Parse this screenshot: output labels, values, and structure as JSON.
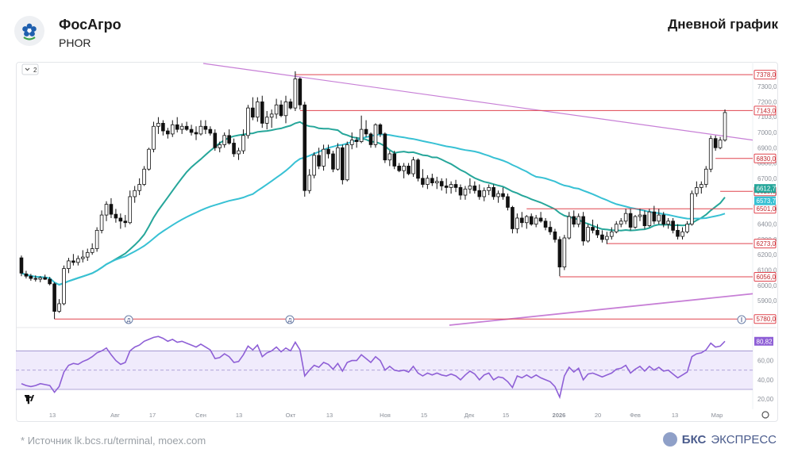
{
  "header": {
    "company": "ФосАгро",
    "ticker": "PHOR",
    "chart_title": "Дневной график",
    "logo_icon": "phosagro-flower-icon"
  },
  "footer": {
    "source": "Источник lk.bcs.ru/terminal, moex.com",
    "brand_bold": "БКС",
    "brand_rest": "ЭКСПРЕСС",
    "star": "*"
  },
  "toolbar": {
    "collapse_label": "2"
  },
  "colors": {
    "up": "#ffffff",
    "down": "#111111",
    "ma_fast": "#26a69a",
    "ma_slow": "#38c1d4",
    "trend": "#c77fd6",
    "level": "#e0454f",
    "rsi": "#8e5fd6"
  },
  "chart_data": [
    {
      "type": "candlestick",
      "y_range": [
        5750,
        7420
      ],
      "x_ticks": [
        "13",
        "Авг",
        "17",
        "Сен",
        "13",
        "Окт",
        "13",
        "Ноя",
        "15",
        "Дек",
        "15",
        "2026",
        "20",
        "Фев",
        "13",
        "Мар"
      ],
      "y_ticks": [
        "7300,0",
        "7200,0",
        "7103,0",
        "7000,0",
        "6900,0",
        "6800,0",
        "6700,0",
        "6600,0",
        "6500,0",
        "6400,0",
        "6300,0",
        "6200,0",
        "6100,0",
        "6000,0",
        "5900,0"
      ],
      "levels": [
        {
          "label": "7378,0",
          "value": 7378
        },
        {
          "label": "7143,0",
          "value": 7143
        },
        {
          "label": "6830,0",
          "value": 6830
        },
        {
          "label": "6615,0",
          "value": 6615
        },
        {
          "label": "6501,0",
          "value": 6501
        },
        {
          "label": "6273,0",
          "value": 6273
        },
        {
          "label": "6056,0",
          "value": 6056
        },
        {
          "label": "5780,0",
          "value": 5780
        }
      ],
      "ma_labels": [
        {
          "label": "6612,7",
          "value": 6612.7
        },
        {
          "label": "6573,7",
          "value": 6573.7
        }
      ],
      "events": [
        "Д",
        "Д"
      ],
      "ohlc": [
        [
          6180,
          6195,
          6060,
          6080
        ],
        [
          6075,
          6095,
          6045,
          6060
        ],
        [
          6060,
          6075,
          6030,
          6045
        ],
        [
          6045,
          6065,
          6025,
          6040
        ],
        [
          6040,
          6060,
          6020,
          6050
        ],
        [
          6050,
          6070,
          6035,
          6040
        ],
        [
          6040,
          6055,
          6000,
          6010
        ],
        [
          6010,
          6020,
          5780,
          5830
        ],
        [
          5830,
          5910,
          5820,
          5880
        ],
        [
          5880,
          6130,
          5870,
          6110
        ],
        [
          6110,
          6180,
          6080,
          6160
        ],
        [
          6160,
          6205,
          6130,
          6150
        ],
        [
          6150,
          6195,
          6130,
          6175
        ],
        [
          6175,
          6230,
          6150,
          6185
        ],
        [
          6185,
          6240,
          6160,
          6215
        ],
        [
          6215,
          6275,
          6200,
          6240
        ],
        [
          6240,
          6380,
          6220,
          6360
        ],
        [
          6360,
          6490,
          6340,
          6460
        ],
        [
          6460,
          6550,
          6420,
          6530
        ],
        [
          6530,
          6570,
          6440,
          6465
        ],
        [
          6465,
          6500,
          6410,
          6440
        ],
        [
          6440,
          6470,
          6370,
          6420
        ],
        [
          6420,
          6460,
          6380,
          6410
        ],
        [
          6410,
          6620,
          6400,
          6580
        ],
        [
          6580,
          6650,
          6540,
          6620
        ],
        [
          6620,
          6700,
          6590,
          6660
        ],
        [
          6660,
          6780,
          6650,
          6760
        ],
        [
          6760,
          6900,
          6750,
          6890
        ],
        [
          6890,
          7070,
          6870,
          7040
        ],
        [
          7040,
          7100,
          6990,
          7060
        ],
        [
          7060,
          7080,
          6980,
          7010
        ],
        [
          7010,
          7030,
          6960,
          6990
        ],
        [
          6990,
          7080,
          6970,
          7050
        ],
        [
          7050,
          7100,
          7000,
          7020
        ],
        [
          7020,
          7060,
          6990,
          7040
        ],
        [
          7040,
          7070,
          7010,
          7020
        ],
        [
          7020,
          7050,
          6980,
          7000
        ],
        [
          7000,
          7040,
          6950,
          6990
        ],
        [
          6990,
          7080,
          6980,
          7040
        ],
        [
          7040,
          7080,
          6990,
          7020
        ],
        [
          7020,
          7040,
          6980,
          6995
        ],
        [
          6995,
          7020,
          6880,
          6900
        ],
        [
          6900,
          6940,
          6870,
          6920
        ],
        [
          6920,
          7000,
          6900,
          6980
        ],
        [
          6980,
          7020,
          6920,
          6930
        ],
        [
          6930,
          6960,
          6840,
          6860
        ],
        [
          6860,
          6900,
          6820,
          6880
        ],
        [
          6880,
          7020,
          6860,
          6980
        ],
        [
          6980,
          7180,
          6960,
          7160
        ],
        [
          7160,
          7230,
          7080,
          7100
        ],
        [
          7100,
          7230,
          7070,
          7200
        ],
        [
          7200,
          7240,
          7030,
          7060
        ],
        [
          7060,
          7140,
          7020,
          7100
        ],
        [
          7100,
          7150,
          7030,
          7120
        ],
        [
          7120,
          7220,
          7090,
          7180
        ],
        [
          7180,
          7210,
          7100,
          7110
        ],
        [
          7110,
          7240,
          7060,
          7200
        ],
        [
          7200,
          7220,
          7150,
          7160
        ],
        [
          7160,
          7400,
          7140,
          7350
        ],
        [
          7350,
          7360,
          7150,
          7180
        ],
        [
          7180,
          7200,
          6580,
          6620
        ],
        [
          6620,
          6760,
          6600,
          6720
        ],
        [
          6720,
          6870,
          6700,
          6850
        ],
        [
          6850,
          6900,
          6760,
          6780
        ],
        [
          6780,
          6920,
          6750,
          6890
        ],
        [
          6890,
          6920,
          6830,
          6860
        ],
        [
          6860,
          6880,
          6740,
          6760
        ],
        [
          6760,
          6930,
          6750,
          6900
        ],
        [
          6900,
          6920,
          6660,
          6690
        ],
        [
          6690,
          6940,
          6680,
          6920
        ],
        [
          6920,
          7000,
          6890,
          6950
        ],
        [
          6950,
          6970,
          6900,
          6940
        ],
        [
          6940,
          7110,
          6930,
          7020
        ],
        [
          7020,
          7080,
          6970,
          6990
        ],
        [
          6990,
          7000,
          6900,
          6920
        ],
        [
          6920,
          7060,
          6900,
          7050
        ],
        [
          7050,
          7060,
          6970,
          6990
        ],
        [
          6990,
          7000,
          6800,
          6820
        ],
        [
          6820,
          6880,
          6780,
          6860
        ],
        [
          6860,
          6880,
          6760,
          6780
        ],
        [
          6780,
          6800,
          6740,
          6750
        ],
        [
          6750,
          6800,
          6700,
          6780
        ],
        [
          6780,
          6800,
          6720,
          6730
        ],
        [
          6730,
          6840,
          6710,
          6820
        ],
        [
          6820,
          6830,
          6680,
          6700
        ],
        [
          6700,
          6760,
          6640,
          6660
        ],
        [
          6660,
          6720,
          6630,
          6700
        ],
        [
          6700,
          6730,
          6650,
          6670
        ],
        [
          6670,
          6710,
          6630,
          6680
        ],
        [
          6680,
          6700,
          6620,
          6650
        ],
        [
          6650,
          6700,
          6600,
          6640
        ],
        [
          6640,
          6680,
          6600,
          6660
        ],
        [
          6660,
          6690,
          6610,
          6640
        ],
        [
          6640,
          6660,
          6560,
          6590
        ],
        [
          6590,
          6650,
          6560,
          6630
        ],
        [
          6630,
          6700,
          6600,
          6650
        ],
        [
          6650,
          6680,
          6600,
          6620
        ],
        [
          6620,
          6660,
          6560,
          6580
        ],
        [
          6580,
          6640,
          6550,
          6620
        ],
        [
          6620,
          6660,
          6590,
          6640
        ],
        [
          6640,
          6660,
          6560,
          6580
        ],
        [
          6580,
          6620,
          6540,
          6600
        ],
        [
          6600,
          6640,
          6560,
          6580
        ],
        [
          6580,
          6600,
          6490,
          6510
        ],
        [
          6510,
          6520,
          6340,
          6370
        ],
        [
          6370,
          6470,
          6340,
          6440
        ],
        [
          6440,
          6480,
          6380,
          6410
        ],
        [
          6410,
          6460,
          6370,
          6450
        ],
        [
          6450,
          6470,
          6390,
          6400
        ],
        [
          6400,
          6460,
          6380,
          6440
        ],
        [
          6440,
          6480,
          6410,
          6420
        ],
        [
          6420,
          6440,
          6360,
          6380
        ],
        [
          6380,
          6420,
          6330,
          6350
        ],
        [
          6350,
          6370,
          6280,
          6300
        ],
        [
          6300,
          6320,
          6060,
          6120
        ],
        [
          6120,
          6330,
          6100,
          6310
        ],
        [
          6310,
          6480,
          6300,
          6450
        ],
        [
          6450,
          6490,
          6380,
          6400
        ],
        [
          6400,
          6470,
          6380,
          6450
        ],
        [
          6450,
          6480,
          6260,
          6290
        ],
        [
          6290,
          6400,
          6280,
          6380
        ],
        [
          6380,
          6430,
          6340,
          6360
        ],
        [
          6360,
          6400,
          6310,
          6330
        ],
        [
          6330,
          6360,
          6280,
          6300
        ],
        [
          6300,
          6350,
          6270,
          6320
        ],
        [
          6320,
          6380,
          6300,
          6350
        ],
        [
          6350,
          6420,
          6340,
          6400
        ],
        [
          6400,
          6440,
          6380,
          6420
        ],
        [
          6420,
          6500,
          6400,
          6470
        ],
        [
          6470,
          6500,
          6360,
          6380
        ],
        [
          6380,
          6460,
          6370,
          6450
        ],
        [
          6450,
          6500,
          6420,
          6460
        ],
        [
          6460,
          6490,
          6370,
          6390
        ],
        [
          6390,
          6500,
          6380,
          6480
        ],
        [
          6480,
          6520,
          6400,
          6420
        ],
        [
          6420,
          6500,
          6400,
          6460
        ],
        [
          6460,
          6480,
          6380,
          6400
        ],
        [
          6400,
          6440,
          6370,
          6420
        ],
        [
          6420,
          6440,
          6340,
          6360
        ],
        [
          6360,
          6400,
          6300,
          6320
        ],
        [
          6320,
          6380,
          6300,
          6350
        ],
        [
          6350,
          6420,
          6340,
          6400
        ],
        [
          6400,
          6620,
          6390,
          6600
        ],
        [
          6600,
          6680,
          6580,
          6640
        ],
        [
          6640,
          6680,
          6600,
          6660
        ],
        [
          6660,
          6780,
          6640,
          6760
        ],
        [
          6760,
          6980,
          6740,
          6960
        ],
        [
          6960,
          6980,
          6880,
          6900
        ],
        [
          6900,
          6970,
          6890,
          6950
        ],
        [
          6950,
          7150,
          6940,
          7130
        ]
      ]
    },
    {
      "type": "line",
      "name": "RSI",
      "y_range": [
        16,
        86
      ],
      "y_ticks": [
        "80,0",
        "60,00",
        "40,00",
        "20,00"
      ],
      "band": [
        30,
        70
      ],
      "mid": 50,
      "last_label": "80,82",
      "values": [
        36,
        34,
        33,
        34,
        36,
        35,
        34,
        27,
        33,
        48,
        55,
        57,
        56,
        59,
        61,
        64,
        68,
        70,
        73,
        66,
        60,
        56,
        58,
        70,
        74,
        76,
        80,
        82,
        84,
        85,
        83,
        80,
        82,
        79,
        80,
        78,
        76,
        74,
        77,
        74,
        71,
        62,
        63,
        67,
        64,
        58,
        59,
        66,
        75,
        71,
        76,
        64,
        68,
        70,
        74,
        69,
        73,
        70,
        79,
        71,
        44,
        50,
        55,
        53,
        58,
        56,
        51,
        57,
        49,
        58,
        60,
        60,
        66,
        62,
        58,
        64,
        60,
        50,
        54,
        50,
        49,
        50,
        48,
        54,
        47,
        44,
        47,
        45,
        47,
        45,
        44,
        46,
        44,
        40,
        45,
        49,
        46,
        40,
        45,
        47,
        40,
        43,
        42,
        38,
        32,
        44,
        42,
        45,
        42,
        45,
        42,
        40,
        38,
        33,
        22,
        44,
        53,
        48,
        52,
        40,
        46,
        47,
        45,
        43,
        45,
        47,
        51,
        52,
        55,
        47,
        51,
        54,
        49,
        54,
        50,
        53,
        49,
        50,
        46,
        42,
        45,
        48,
        64,
        67,
        68,
        71,
        78,
        74,
        75,
        80
      ]
    }
  ]
}
